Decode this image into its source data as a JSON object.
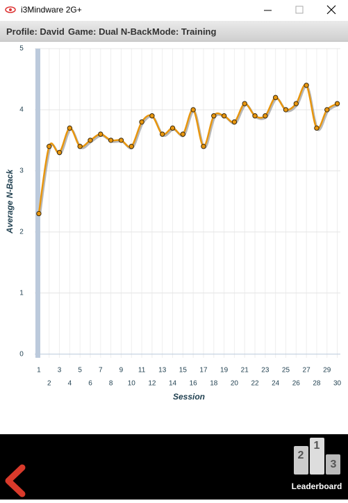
{
  "window": {
    "title": "i3Mindware 2G+"
  },
  "header": {
    "profile": "Profile: David",
    "game": "Game: Dual N-Back",
    "mode": "Mode: Training"
  },
  "chart_data": {
    "type": "line",
    "x_label": "Session",
    "y_label": "Average N-Back",
    "x": [
      1,
      2,
      3,
      4,
      5,
      6,
      7,
      8,
      9,
      10,
      11,
      12,
      13,
      14,
      15,
      16,
      17,
      18,
      19,
      20,
      21,
      22,
      23,
      24,
      25,
      26,
      27,
      28,
      29,
      30
    ],
    "values": [
      2.3,
      3.4,
      3.3,
      3.7,
      3.4,
      3.5,
      3.6,
      3.5,
      3.5,
      3.4,
      3.8,
      3.9,
      3.6,
      3.7,
      3.6,
      4.0,
      3.4,
      3.9,
      3.9,
      3.8,
      4.1,
      3.9,
      3.9,
      4.2,
      4.0,
      4.1,
      4.4,
      3.7,
      4.0,
      4.1
    ],
    "color": "#e8960e",
    "xlim": [
      0.6,
      30.3
    ],
    "ylim": [
      -0.06,
      5
    ],
    "xticks": [
      1,
      2,
      3,
      4,
      5,
      6,
      7,
      8,
      9,
      10,
      11,
      12,
      13,
      14,
      15,
      16,
      17,
      18,
      19,
      20,
      21,
      22,
      23,
      24,
      25,
      26,
      27,
      28,
      29,
      30
    ],
    "yticks": [
      0,
      1,
      2,
      3,
      4,
      5
    ],
    "grid": true
  },
  "footer": {
    "podium": [
      "2",
      "1",
      "3"
    ],
    "leaderboard": "Leaderboard"
  }
}
